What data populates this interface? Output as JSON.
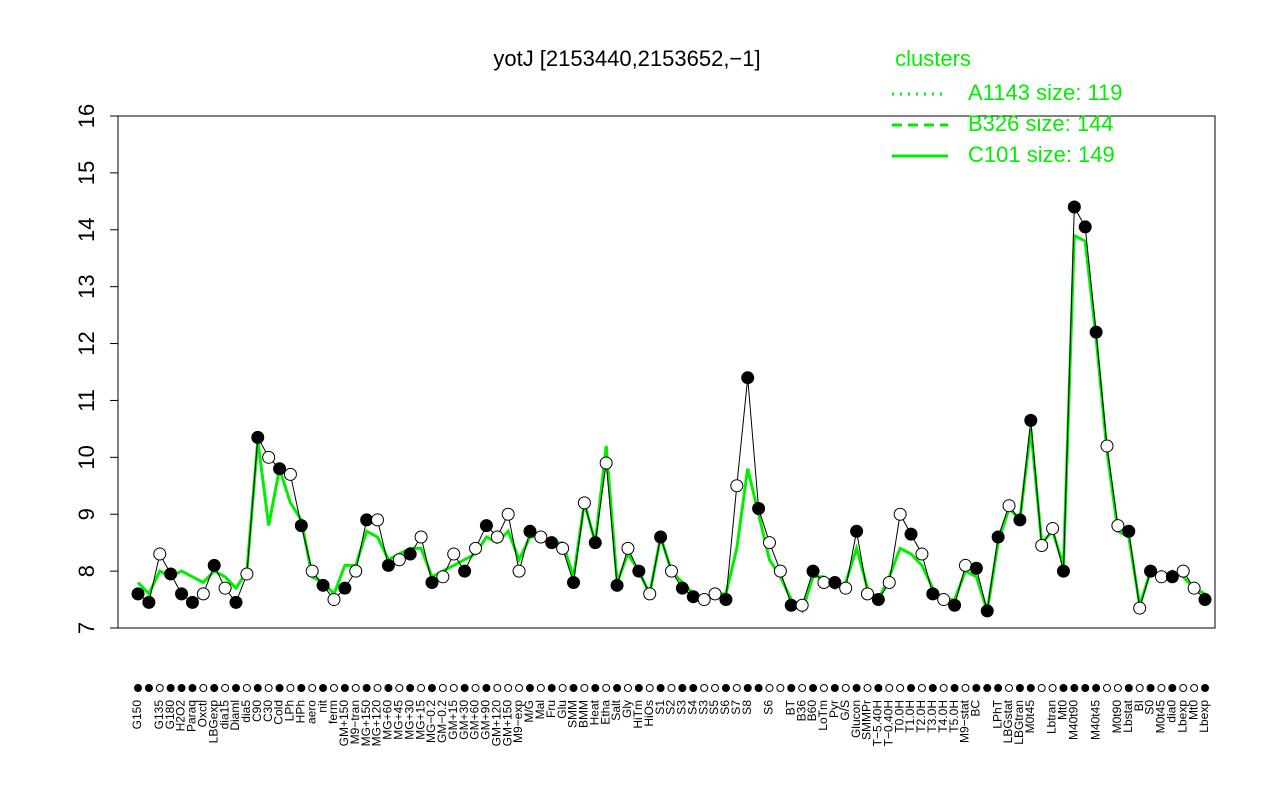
{
  "chart_data": {
    "type": "line",
    "title": "yotJ [2153440,2153652,−1]",
    "ylim": [
      7,
      16
    ],
    "yticks": [
      7,
      8,
      9,
      10,
      11,
      12,
      13,
      14,
      15,
      16
    ],
    "categories": [
      "G150",
      null,
      "G135",
      "G180",
      "H2O2",
      "Paraq",
      "Oxctl",
      "LBGexp",
      "dia15",
      "Diaml",
      "dia5",
      "C90",
      "C30",
      "Cold",
      "LPh",
      "HPh",
      "aero",
      "nit",
      "ferm",
      "GM+150",
      "M9−tran",
      "MG+150",
      "MG+120",
      "MG+60",
      "MG+45",
      "MG+30",
      "MG+15",
      "MG−0.2",
      "GM−0.2",
      "GM+15",
      "GM+30",
      "GM+60",
      "GM+90",
      "GM+120",
      "GM+150",
      "M9−exp",
      "M/G",
      "Mal",
      "Fru",
      "Glu",
      "SMM",
      "BMM",
      "Heat",
      "Etha",
      "Salt",
      "Gly",
      "HiTm",
      "HiOs",
      "S1",
      "S2",
      "S3",
      "S4",
      "S3",
      "S5",
      "S6",
      "S7",
      "S8",
      null,
      "S6",
      null,
      "BT",
      "B36",
      "B60",
      "LoTm",
      "Pyr",
      "G/S",
      "Glucon",
      "SMMPr",
      "T−5.40H",
      "T−0.40H",
      "T0.0H",
      "T1.0H",
      "T2.0H",
      "T3.0H",
      "T4.0H",
      "T5.0H",
      "M9−stat",
      "BC",
      null,
      "LPhT",
      "LBGstat",
      "LBGtran",
      "M0t45",
      null,
      "Lbtran",
      "Mt0",
      "M40t90",
      null,
      "M40t45",
      null,
      "M0t90",
      "Lbstat",
      "BI",
      "S0",
      "M0t45",
      "dia0",
      "Lbexp",
      "Mt0",
      "Lbexp"
    ],
    "values": [
      7.6,
      7.45,
      8.3,
      7.95,
      7.6,
      7.45,
      7.6,
      8.1,
      7.7,
      7.45,
      7.95,
      10.35,
      10.0,
      9.8,
      9.7,
      8.8,
      8.0,
      7.75,
      7.5,
      7.7,
      8.0,
      8.9,
      8.9,
      8.1,
      8.2,
      8.3,
      8.6,
      7.8,
      7.9,
      8.3,
      8.0,
      8.4,
      8.8,
      8.6,
      9.0,
      8.0,
      8.7,
      8.6,
      8.5,
      8.4,
      7.8,
      9.2,
      8.5,
      9.9,
      7.75,
      8.4,
      8.0,
      7.6,
      8.6,
      8.0,
      7.7,
      7.55,
      7.5,
      7.6,
      7.5,
      9.5,
      11.4,
      9.1,
      8.5,
      8.0,
      7.4,
      7.4,
      8.0,
      7.8,
      7.8,
      7.7,
      8.7,
      7.6,
      7.5,
      7.8,
      9.0,
      8.65,
      8.3,
      7.6,
      7.5,
      7.4,
      8.1,
      8.05,
      7.3,
      8.6,
      9.15,
      8.9,
      10.65,
      8.45,
      8.75,
      8.0,
      14.4,
      14.05,
      12.2,
      10.2,
      8.8,
      8.7,
      7.35,
      8.0,
      7.9,
      7.9,
      8.0,
      7.7,
      7.5
    ],
    "point_fills": [
      "black",
      "black",
      "white",
      "black",
      "black",
      "black",
      "white",
      "black",
      "white",
      "black",
      "white",
      "black",
      "white",
      "black",
      "white",
      "black",
      "white",
      "black",
      "white",
      "black",
      "white",
      "black",
      "white",
      "black",
      "white",
      "black",
      "white",
      "black",
      "white",
      "white",
      "black",
      "white",
      "black",
      "white",
      "white",
      "white",
      "black",
      "white",
      "black",
      "white",
      "black",
      "white",
      "black",
      "white",
      "black",
      "white",
      "black",
      "white",
      "black",
      "white",
      "black",
      "black",
      "white",
      "white",
      "black",
      "white",
      "black",
      "black",
      "white",
      "white",
      "black",
      "white",
      "black",
      "white",
      "black",
      "white",
      "black",
      "white",
      "black",
      "white",
      "white",
      "black",
      "white",
      "black",
      "white",
      "black",
      "white",
      "black",
      "black",
      "black",
      "white",
      "black",
      "black",
      "white",
      "white",
      "black",
      "black",
      "black",
      "black",
      "white",
      "white",
      "black",
      "white",
      "black",
      "white",
      "black",
      "white",
      "white",
      "black"
    ],
    "series": [
      {
        "name": "C101 size: 149",
        "color": "#00ee00",
        "dash": "solid",
        "values": [
          7.8,
          7.6,
          8.0,
          7.9,
          8.0,
          7.9,
          7.8,
          8.0,
          7.9,
          7.7,
          8.0,
          10.3,
          8.8,
          9.8,
          9.2,
          8.9,
          7.9,
          7.8,
          7.6,
          8.1,
          8.1,
          8.7,
          8.6,
          8.2,
          8.3,
          8.4,
          8.4,
          7.9,
          8.0,
          8.1,
          8.2,
          8.3,
          8.6,
          8.5,
          8.7,
          8.2,
          8.6,
          8.6,
          8.5,
          8.5,
          7.9,
          9.2,
          8.5,
          10.2,
          7.8,
          8.3,
          8.0,
          7.6,
          8.6,
          8.0,
          7.8,
          7.6,
          7.5,
          7.6,
          7.6,
          8.4,
          9.8,
          9.0,
          8.2,
          7.9,
          7.5,
          7.3,
          7.9,
          7.9,
          7.7,
          7.8,
          8.4,
          7.7,
          7.5,
          7.9,
          8.4,
          8.3,
          8.1,
          7.7,
          7.5,
          7.5,
          8.0,
          7.9,
          7.3,
          8.5,
          9.1,
          8.9,
          10.5,
          8.5,
          8.7,
          8.1,
          13.9,
          13.8,
          12.1,
          10.1,
          8.7,
          8.6,
          7.4,
          8.0,
          7.9,
          8.0,
          7.9,
          7.7,
          7.6
        ]
      }
    ],
    "legend": {
      "title": "clusters",
      "corner": "top-right",
      "entries": [
        {
          "label": "A1143 size: 119",
          "dash": "dotted"
        },
        {
          "label": "B326 size: 144",
          "dash": "dashed"
        },
        {
          "label": "C101 size: 149",
          "dash": "solid"
        }
      ]
    }
  }
}
